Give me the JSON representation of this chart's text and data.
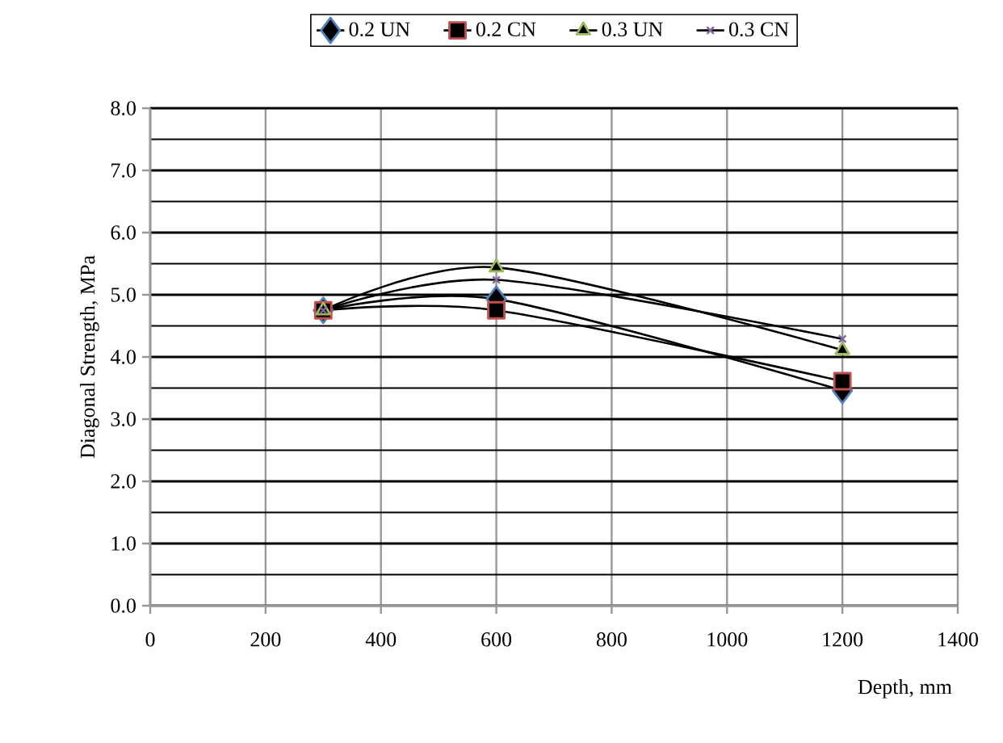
{
  "chart_data": {
    "type": "line",
    "xlabel": "Depth, mm",
    "ylabel": "Diagonal Strength, MPa",
    "x": [
      300,
      600,
      1200
    ],
    "series": [
      {
        "name": "0.2 UN",
        "color": "#4f81bd",
        "marker": "diamond",
        "values": [
          4.75,
          4.93,
          3.46
        ]
      },
      {
        "name": "0.2 CN",
        "color": "#c0504d",
        "marker": "square",
        "values": [
          4.75,
          4.75,
          3.61
        ]
      },
      {
        "name": "0.3 UN",
        "color": "#9bbb59",
        "marker": "triangle",
        "values": [
          4.75,
          5.44,
          4.11
        ]
      },
      {
        "name": "0.3 CN",
        "color": "#8064a2",
        "marker": "cross",
        "values": [
          4.75,
          5.24,
          4.29
        ]
      }
    ],
    "xlim": [
      0,
      1400
    ],
    "xticks": [
      0,
      200,
      400,
      600,
      800,
      1000,
      1200,
      1400
    ],
    "ylim": [
      0,
      8
    ],
    "yticks": [
      {
        "value": 0,
        "label": "0.0"
      },
      {
        "value": 1,
        "label": "1.0"
      },
      {
        "value": 2,
        "label": "2.0"
      },
      {
        "value": 3,
        "label": "3.0"
      },
      {
        "value": 4,
        "label": "4.0"
      },
      {
        "value": 5,
        "label": "5.0"
      },
      {
        "value": 6,
        "label": "6.0"
      },
      {
        "value": 7,
        "label": "7.0"
      },
      {
        "value": 8,
        "label": "8.0"
      }
    ],
    "grid": true,
    "legend": "top"
  }
}
